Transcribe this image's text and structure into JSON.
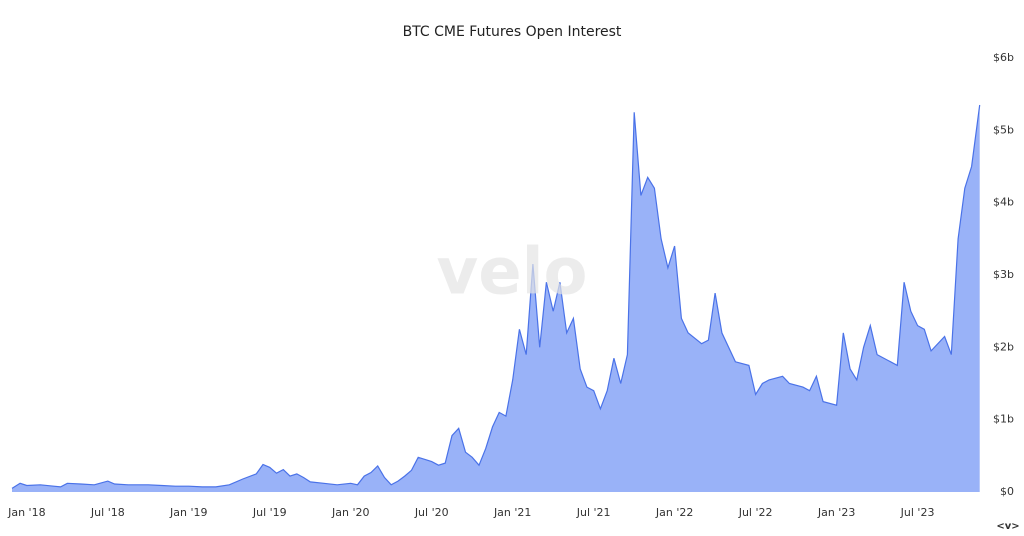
{
  "chart_data": {
    "type": "area",
    "title": "BTC CME Futures Open Interest",
    "watermark": "velo",
    "nav_label": "<v>",
    "color": "#93aef8",
    "line_color": "#4a72e8",
    "grid": false,
    "x": [
      -1.1,
      -0.5,
      0,
      1,
      2,
      2.5,
      3,
      4,
      5,
      6,
      6.5,
      7.5,
      9,
      10,
      11,
      12,
      13,
      14,
      15,
      16,
      17,
      17.5,
      18,
      18.5,
      19,
      19.5,
      20,
      20.5,
      21,
      22,
      23,
      24,
      24.5,
      25,
      25.5,
      26,
      26.5,
      27,
      27.5,
      28,
      28.5,
      29,
      29.5,
      30,
      30.5,
      31,
      31.5,
      32,
      32.5,
      33,
      33.5,
      34,
      34.5,
      35,
      35.5,
      36,
      36.5,
      37,
      37.5,
      38,
      38.5,
      39,
      39.5,
      40,
      40.5,
      41,
      41.5,
      42,
      42.5,
      43,
      43.5,
      44,
      44.5,
      45,
      45.5,
      46,
      46.5,
      47,
      47.5,
      48,
      48.5,
      49,
      50,
      50.5,
      51,
      51.5,
      52.5,
      53.5,
      54,
      54.5,
      55,
      56,
      56.5,
      57.5,
      58,
      58.5,
      59,
      60,
      60.5,
      61,
      61.5,
      62,
      62.5,
      63,
      64.5,
      65,
      65.5,
      66,
      66.5,
      67,
      68,
      68.5,
      69,
      69.5,
      70,
      70.6
    ],
    "values": [
      0.05,
      0.12,
      0.09,
      0.1,
      0.08,
      0.07,
      0.12,
      0.11,
      0.1,
      0.15,
      0.11,
      0.1,
      0.1,
      0.09,
      0.08,
      0.08,
      0.07,
      0.07,
      0.1,
      0.18,
      0.25,
      0.38,
      0.34,
      0.26,
      0.31,
      0.22,
      0.25,
      0.2,
      0.14,
      0.12,
      0.1,
      0.12,
      0.1,
      0.22,
      0.27,
      0.36,
      0.2,
      0.1,
      0.15,
      0.22,
      0.3,
      0.48,
      0.45,
      0.42,
      0.37,
      0.4,
      0.78,
      0.88,
      0.55,
      0.48,
      0.37,
      0.6,
      0.9,
      1.1,
      1.05,
      1.55,
      2.25,
      1.9,
      3.15,
      2.0,
      2.9,
      2.5,
      2.9,
      2.2,
      2.4,
      1.7,
      1.45,
      1.4,
      1.15,
      1.4,
      1.85,
      1.5,
      1.9,
      5.25,
      4.1,
      4.35,
      4.2,
      3.5,
      3.1,
      3.4,
      2.4,
      2.2,
      2.05,
      2.1,
      2.75,
      2.2,
      1.8,
      1.75,
      1.35,
      1.5,
      1.55,
      1.6,
      1.5,
      1.45,
      1.4,
      1.6,
      1.25,
      1.2,
      2.2,
      1.7,
      1.55,
      2.0,
      2.3,
      1.9,
      1.75,
      2.9,
      2.5,
      2.3,
      2.25,
      1.95,
      2.15,
      1.9,
      3.5,
      4.2,
      4.5,
      5.35
    ],
    "xlim": [
      -1.1,
      70.7
    ],
    "xticks": [
      {
        "value": 0,
        "label": "Jan '18"
      },
      {
        "value": 6,
        "label": "Jul '18"
      },
      {
        "value": 12,
        "label": "Jan '19"
      },
      {
        "value": 18,
        "label": "Jul '19"
      },
      {
        "value": 24,
        "label": "Jan '20"
      },
      {
        "value": 30,
        "label": "Jul '20"
      },
      {
        "value": 36,
        "label": "Jan '21"
      },
      {
        "value": 42,
        "label": "Jul '21"
      },
      {
        "value": 48,
        "label": "Jan '22"
      },
      {
        "value": 54,
        "label": "Jul '22"
      },
      {
        "value": 60,
        "label": "Jan '23"
      },
      {
        "value": 66,
        "label": "Jul '23"
      }
    ],
    "ylim": [
      0,
      6
    ],
    "yticks": [
      {
        "value": 0,
        "label": "$0"
      },
      {
        "value": 1,
        "label": "$1b"
      },
      {
        "value": 2,
        "label": "$2b"
      },
      {
        "value": 3,
        "label": "$3b"
      },
      {
        "value": 4,
        "label": "$4b"
      },
      {
        "value": 5,
        "label": "$5b"
      },
      {
        "value": 6,
        "label": "$6b"
      }
    ]
  }
}
